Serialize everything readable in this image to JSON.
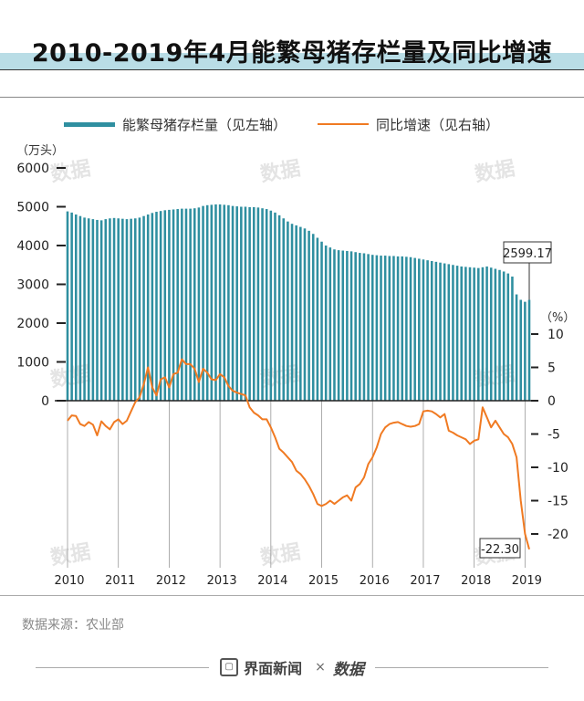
{
  "title": "2010-2019年4月能繁母猪存栏量及同比增速",
  "legend": {
    "bar_label": "能繁母猪存栏量（见左轴）",
    "line_label": "同比增速（见右轴）"
  },
  "axis_units": {
    "left": "（万头）",
    "right": "（%）"
  },
  "source": "数据来源：农业部",
  "footer": {
    "brand1": "界面新闻",
    "separator": "×",
    "brand2": "数据",
    "brand1_icon": "jiemian-logo-icon"
  },
  "watermark": "数据",
  "colors": {
    "bar": "#2f8fa0",
    "line": "#f07a22",
    "band": "#b9dde6"
  },
  "chart_data": {
    "type": "bar+line",
    "left_axis": {
      "ylim": [
        0,
        6000
      ],
      "ticks": [
        0,
        1000,
        2000,
        3000,
        4000,
        5000,
        6000
      ],
      "tick_labels": [
        "0",
        "1000",
        "2000",
        "3000",
        "4000",
        "5000",
        "6000"
      ]
    },
    "right_axis": {
      "ylim": [
        -25,
        12
      ],
      "ticks": [
        10,
        5,
        0,
        -5,
        -10,
        -15,
        -20
      ],
      "tick_labels": [
        "10",
        "5",
        "0",
        "-5",
        "-10",
        "-15",
        "-20"
      ]
    },
    "x_labels": [
      "2010",
      "2011",
      "2012",
      "2013",
      "2014",
      "2015",
      "2016",
      "2017",
      "2018",
      "2019"
    ],
    "period": "2010-01 to 2019-04 (monthly)",
    "series": [
      {
        "name": "能繁母猪存栏量",
        "axis": "left",
        "values": [
          4880,
          4850,
          4800,
          4760,
          4720,
          4700,
          4680,
          4660,
          4650,
          4680,
          4700,
          4710,
          4700,
          4690,
          4680,
          4690,
          4700,
          4720,
          4760,
          4800,
          4840,
          4870,
          4890,
          4910,
          4920,
          4930,
          4940,
          4950,
          4950,
          4950,
          4960,
          4980,
          5020,
          5040,
          5050,
          5060,
          5060,
          5050,
          5040,
          5020,
          5010,
          5000,
          5000,
          4990,
          4990,
          4980,
          4960,
          4940,
          4900,
          4850,
          4780,
          4700,
          4620,
          4560,
          4520,
          4480,
          4440,
          4380,
          4300,
          4200,
          4100,
          4000,
          3950,
          3900,
          3880,
          3870,
          3860,
          3850,
          3830,
          3810,
          3800,
          3780,
          3760,
          3750,
          3740,
          3740,
          3730,
          3730,
          3720,
          3720,
          3710,
          3700,
          3680,
          3660,
          3640,
          3620,
          3600,
          3580,
          3560,
          3540,
          3520,
          3500,
          3480,
          3460,
          3450,
          3440,
          3430,
          3420,
          3440,
          3460,
          3430,
          3400,
          3370,
          3330,
          3280,
          3200,
          2740,
          2600,
          2550,
          2599.17
        ],
        "end_label": "2599.17"
      },
      {
        "name": "同比增速",
        "axis": "right",
        "values": [
          -3,
          -2.2,
          -2.3,
          -3.5,
          -3.8,
          -3.2,
          -3.6,
          -5.2,
          -3.1,
          -3.8,
          -4.3,
          -3.2,
          -2.8,
          -3.5,
          -3.0,
          -1.6,
          -0.2,
          0.5,
          2.5,
          5.0,
          2.0,
          0.8,
          3.2,
          3.5,
          2.0,
          4.0,
          4.2,
          6.2,
          5.5,
          5.5,
          4.8,
          2.8,
          4.8,
          4.2,
          3.2,
          3.1,
          4.0,
          3.5,
          2.2,
          1.5,
          1.2,
          1.0,
          0.8,
          -1.0,
          -1.8,
          -2.2,
          -2.8,
          -2.8,
          -4.0,
          -5.5,
          -7.2,
          -7.8,
          -8.5,
          -9.2,
          -10.5,
          -11.0,
          -11.8,
          -12.8,
          -14.0,
          -15.5,
          -15.8,
          -15.5,
          -15.0,
          -15.5,
          -15.0,
          -14.5,
          -14.2,
          -15.0,
          -13.0,
          -12.5,
          -11.5,
          -9.5,
          -8.5,
          -7.0,
          -5.0,
          -4.0,
          -3.5,
          -3.3,
          -3.2,
          -3.5,
          -3.8,
          -3.9,
          -3.8,
          -3.5,
          -1.6,
          -1.5,
          -1.6,
          -2.0,
          -2.5,
          -2.0,
          -4.5,
          -4.8,
          -5.2,
          -5.5,
          -5.8,
          -6.5,
          -6.0,
          -5.8,
          -1.0,
          -2.5,
          -4.0,
          -3.0,
          -4.0,
          -5.0,
          -5.5,
          -6.5,
          -8.5,
          -15.0,
          -20.0,
          -22.3
        ],
        "end_label": "-22.30"
      }
    ]
  }
}
